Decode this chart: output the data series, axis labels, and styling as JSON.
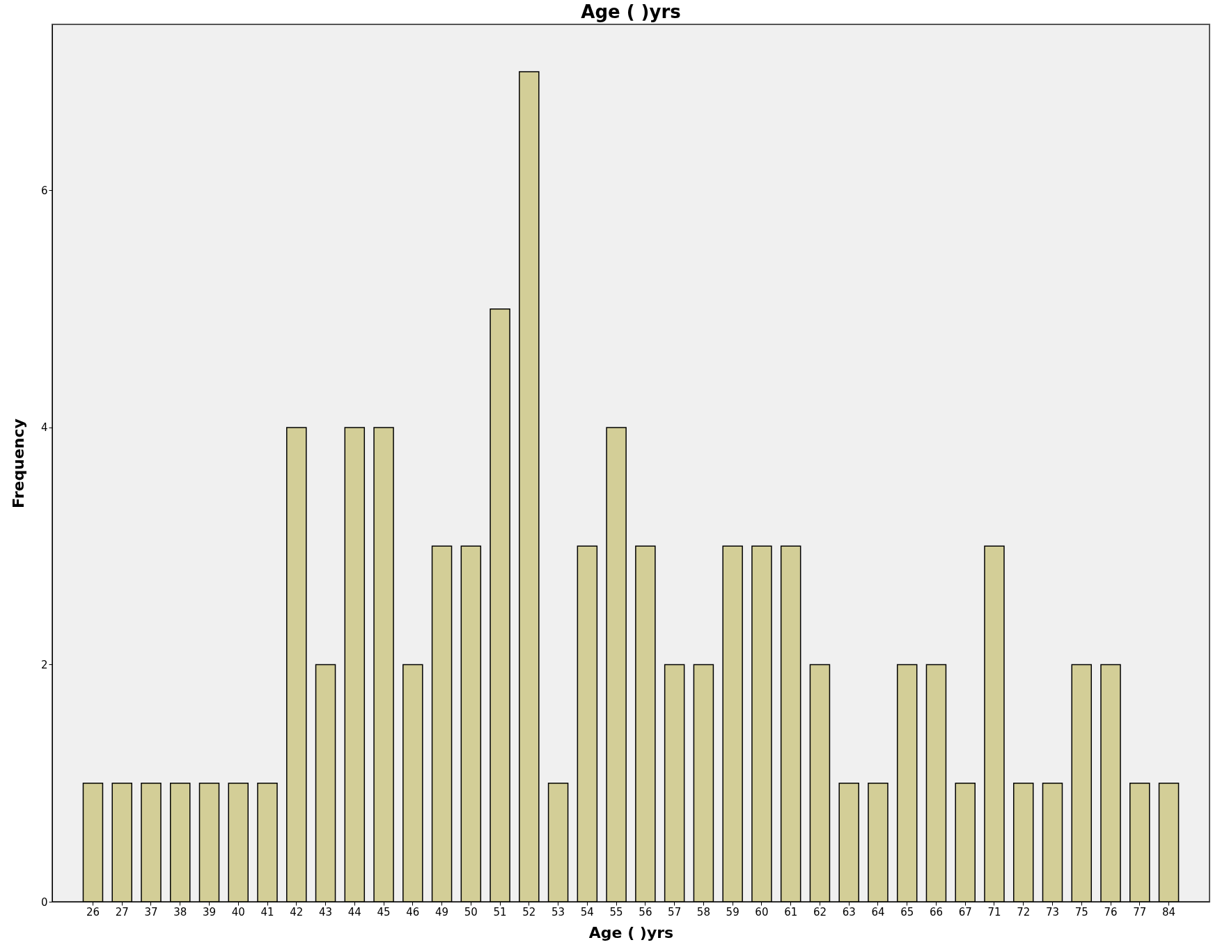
{
  "chart_data": {
    "type": "bar",
    "title": "Age (   )yrs",
    "xlabel": "Age (   )yrs",
    "ylabel": "Frequency",
    "categories": [
      "26",
      "27",
      "37",
      "38",
      "39",
      "40",
      "41",
      "42",
      "43",
      "44",
      "45",
      "46",
      "49",
      "50",
      "51",
      "52",
      "53",
      "54",
      "55",
      "56",
      "57",
      "58",
      "59",
      "60",
      "61",
      "62",
      "63",
      "64",
      "65",
      "66",
      "67",
      "71",
      "72",
      "73",
      "75",
      "76",
      "77",
      "84"
    ],
    "values": [
      1,
      1,
      1,
      1,
      1,
      1,
      1,
      4,
      2,
      4,
      4,
      2,
      3,
      3,
      5,
      7,
      1,
      3,
      4,
      3,
      2,
      2,
      3,
      3,
      3,
      2,
      1,
      1,
      2,
      2,
      1,
      3,
      1,
      1,
      2,
      2,
      1,
      1
    ],
    "color": "#d3ce97",
    "ylim": [
      0,
      7.4
    ],
    "yticks": [
      0,
      2,
      4,
      6
    ],
    "grid": false
  }
}
